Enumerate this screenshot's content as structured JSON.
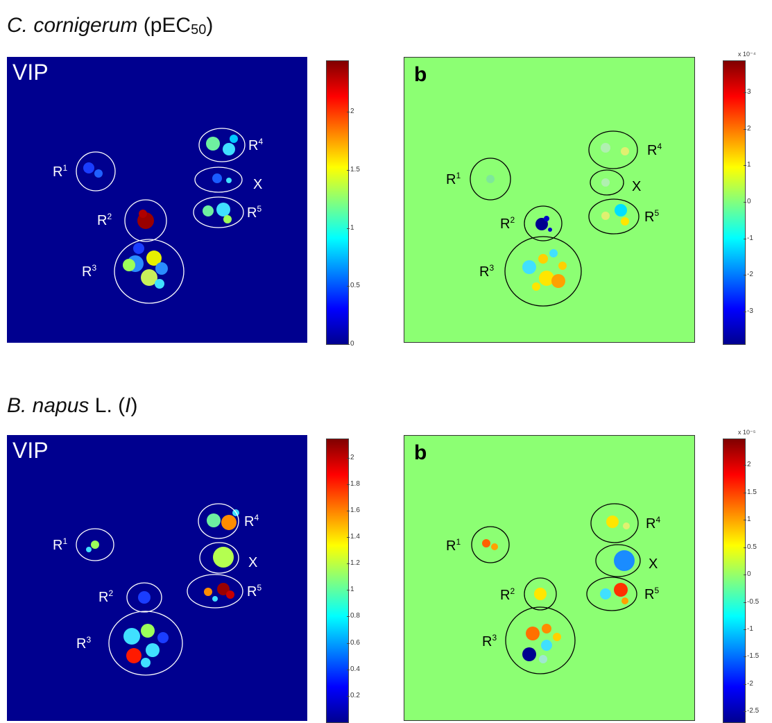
{
  "chart_data": {
    "type": "heatmap",
    "sections": [
      {
        "title": {
          "species": "C. cornigerum",
          "open": " (pEC",
          "sub": "50",
          "close": ")"
        },
        "panels": [
          {
            "label": "VIP",
            "style": "vip",
            "colorbar": {
              "min": 0,
              "max": 2.45,
              "ticks": [
                "2",
                "1.5",
                "1",
                "0.5",
                "0"
              ],
              "tick_values": [
                2,
                1.5,
                1,
                0.5,
                0
              ],
              "exponent": ""
            },
            "regions": [
              {
                "label": "R",
                "sup": "1"
              },
              {
                "label": "R",
                "sup": "2"
              },
              {
                "label": "R",
                "sup": "3"
              },
              {
                "label": "R",
                "sup": "4"
              },
              {
                "label": "X",
                "sup": ""
              },
              {
                "label": "R",
                "sup": "5"
              }
            ]
          },
          {
            "label": "b",
            "style": "b",
            "colorbar": {
              "min": -3.9,
              "max": 3.9,
              "ticks": [
                "3",
                "2",
                "1",
                "0",
                "-1",
                "-2",
                "-3"
              ],
              "tick_values": [
                3,
                2,
                1,
                0,
                -1,
                -2,
                -3
              ],
              "exponent": "x 10⁻⁴"
            },
            "regions": [
              {
                "label": "R",
                "sup": "1"
              },
              {
                "label": "R",
                "sup": "2"
              },
              {
                "label": "R",
                "sup": "3"
              },
              {
                "label": "R",
                "sup": "4"
              },
              {
                "label": "X",
                "sup": ""
              },
              {
                "label": "R",
                "sup": "5"
              }
            ]
          }
        ]
      },
      {
        "title": {
          "species": "B. napus",
          "open": " L. (",
          "italic": "I",
          "close": ")"
        },
        "panels": [
          {
            "label": "VIP",
            "style": "vip",
            "colorbar": {
              "min": 0,
              "max": 2.15,
              "ticks": [
                "2",
                "1.8",
                "1.6",
                "1.4",
                "1.2",
                "1",
                "0.8",
                "0.6",
                "0.4",
                "0.2"
              ],
              "tick_values": [
                2,
                1.8,
                1.6,
                1.4,
                1.2,
                1,
                0.8,
                0.6,
                0.4,
                0.2
              ],
              "exponent": ""
            },
            "regions": [
              {
                "label": "R",
                "sup": "1"
              },
              {
                "label": "R",
                "sup": "2"
              },
              {
                "label": "R",
                "sup": "3"
              },
              {
                "label": "R",
                "sup": "4"
              },
              {
                "label": "X",
                "sup": ""
              },
              {
                "label": "R",
                "sup": "5"
              }
            ]
          },
          {
            "label": "b",
            "style": "b",
            "colorbar": {
              "min": -2.7,
              "max": 2.5,
              "ticks": [
                "2",
                "1.5",
                "1",
                "0.5",
                "0",
                "-0.5",
                "-1",
                "-1.5",
                "-2",
                "-2.5"
              ],
              "tick_values": [
                2,
                1.5,
                1,
                0.5,
                0,
                -0.5,
                -1,
                -1.5,
                -2,
                -2.5
              ],
              "exponent": "x 10⁻⁵"
            },
            "regions": [
              {
                "label": "R",
                "sup": "1"
              },
              {
                "label": "R",
                "sup": "2"
              },
              {
                "label": "R",
                "sup": "3"
              },
              {
                "label": "R",
                "sup": "4"
              },
              {
                "label": "X",
                "sup": ""
              },
              {
                "label": "R",
                "sup": "5"
              }
            ]
          }
        ]
      }
    ]
  }
}
